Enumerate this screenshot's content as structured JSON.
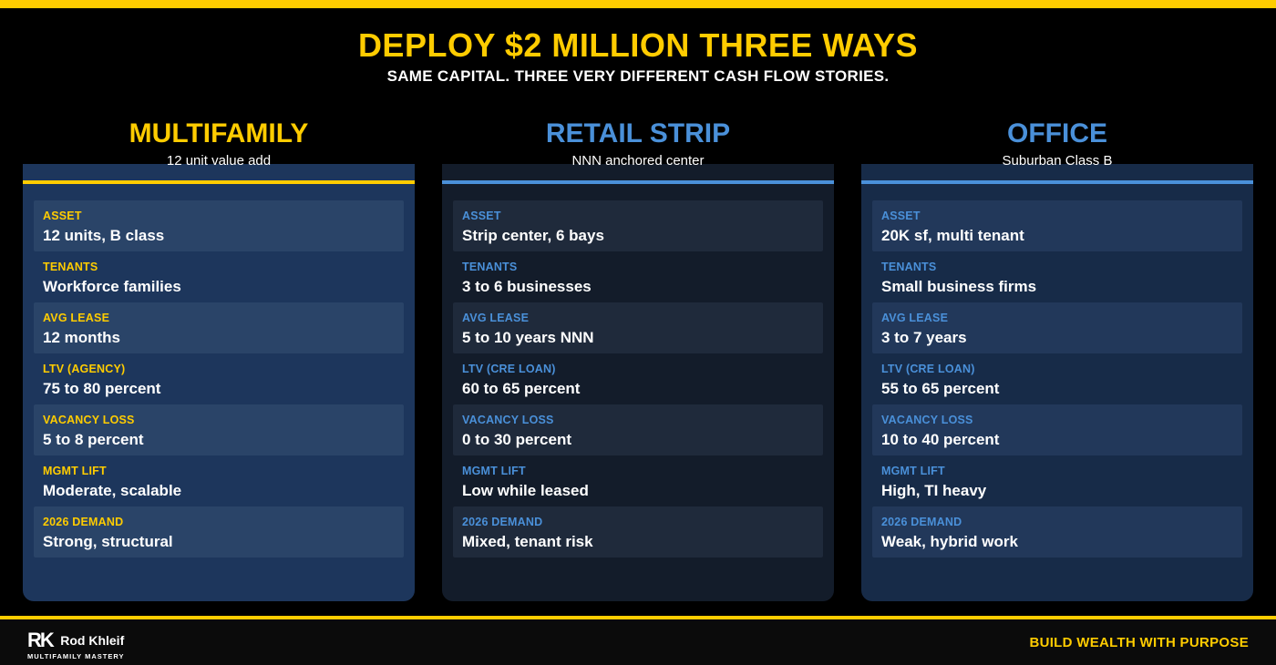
{
  "header": {
    "title": "DEPLOY $2 MILLION THREE WAYS",
    "subtitle": "SAME CAPITAL. THREE VERY DIFFERENT CASH FLOW STORIES."
  },
  "columns": [
    {
      "title": "MULTIFAMILY",
      "subtitle": "12 unit value add",
      "rows": [
        {
          "label": "ASSET",
          "value": "12 units, B class"
        },
        {
          "label": "TENANTS",
          "value": "Workforce families"
        },
        {
          "label": "AVG LEASE",
          "value": "12 months"
        },
        {
          "label": "LTV (AGENCY)",
          "value": "75 to 80 percent"
        },
        {
          "label": "VACANCY LOSS",
          "value": "5 to 8 percent"
        },
        {
          "label": "MGMT LIFT",
          "value": "Moderate, scalable"
        },
        {
          "label": "2026 DEMAND",
          "value": "Strong, structural"
        }
      ]
    },
    {
      "title": "RETAIL STRIP",
      "subtitle": "NNN anchored center",
      "rows": [
        {
          "label": "ASSET",
          "value": "Strip center, 6 bays"
        },
        {
          "label": "TENANTS",
          "value": "3 to 6 businesses"
        },
        {
          "label": "AVG LEASE",
          "value": "5 to 10 years NNN"
        },
        {
          "label": "LTV (CRE LOAN)",
          "value": "60 to 65 percent"
        },
        {
          "label": "VACANCY LOSS",
          "value": "0 to 30 percent"
        },
        {
          "label": "MGMT LIFT",
          "value": "Low while leased"
        },
        {
          "label": "2026 DEMAND",
          "value": "Mixed, tenant risk"
        }
      ]
    },
    {
      "title": "OFFICE",
      "subtitle": "Suburban Class B",
      "rows": [
        {
          "label": "ASSET",
          "value": "20K sf, multi tenant"
        },
        {
          "label": "TENANTS",
          "value": "Small business firms"
        },
        {
          "label": "AVG LEASE",
          "value": "3 to 7 years"
        },
        {
          "label": "LTV (CRE LOAN)",
          "value": "55 to 65 percent"
        },
        {
          "label": "VACANCY LOSS",
          "value": "10 to 40 percent"
        },
        {
          "label": "MGMT LIFT",
          "value": "High, TI heavy"
        },
        {
          "label": "2026 DEMAND",
          "value": "Weak, hybrid work"
        }
      ]
    }
  ],
  "footer": {
    "logo_mark": "RK",
    "logo_name": "Rod Khleif",
    "logo_tag": "MULTIFAMILY MASTERY",
    "tagline": "BUILD WEALTH WITH PURPOSE"
  },
  "colors": {
    "accent_yellow": "#ffcc00",
    "accent_blue": "#4a90d9",
    "background": "#000000"
  }
}
